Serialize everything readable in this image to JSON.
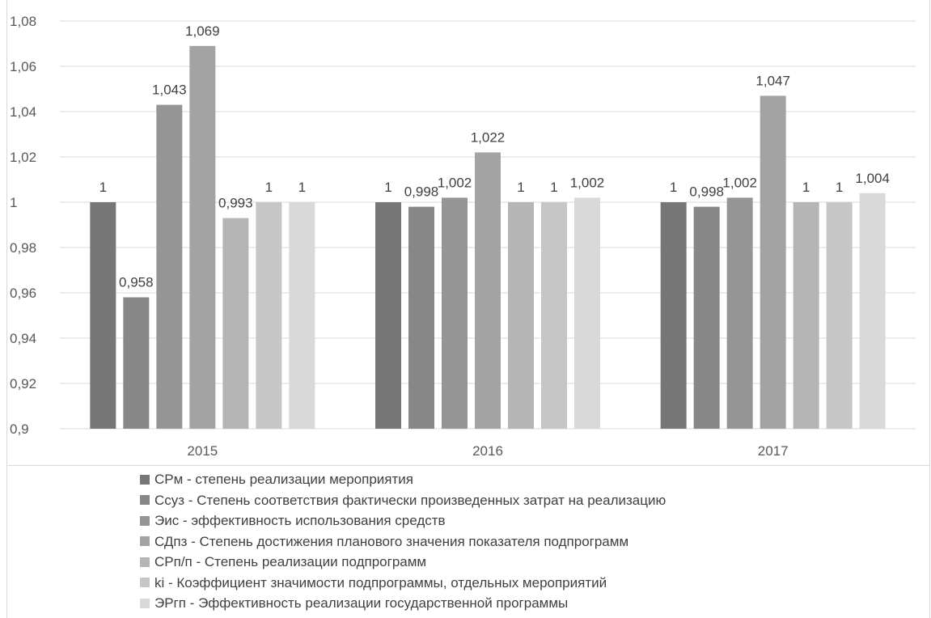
{
  "chart_data": {
    "type": "bar",
    "title": "",
    "xlabel": "",
    "ylabel": "",
    "categories": [
      "2015",
      "2016",
      "2017"
    ],
    "ylim": [
      0.9,
      1.08
    ],
    "yticks": [
      0.9,
      0.92,
      0.94,
      0.96,
      0.98,
      1,
      1.02,
      1.04,
      1.06,
      1.08
    ],
    "ytick_labels": [
      "0,9",
      "0,92",
      "0,94",
      "0,96",
      "0,98",
      "1",
      "1,02",
      "1,04",
      "1,06",
      "1,08"
    ],
    "grid": true,
    "legend_position": "bottom",
    "series": [
      {
        "name": "СРм - степень реализации мероприятия",
        "color": "#767676",
        "values": [
          1,
          1,
          1
        ],
        "labels": [
          "1",
          "1",
          "1"
        ]
      },
      {
        "name": "Ссуз - Степень соответствия фактически произведенных затрат на реализацию",
        "color": "#878787",
        "values": [
          0.958,
          0.998,
          0.998
        ],
        "labels": [
          "0,958",
          "0,998",
          "0,998"
        ]
      },
      {
        "name": "Эис - эффективность использования средств",
        "color": "#959595",
        "values": [
          1.043,
          1.002,
          1.002
        ],
        "labels": [
          "1,043",
          "1,002",
          "1,002"
        ]
      },
      {
        "name": "СДпз - Степень достижения планового значения показателя  подпрограмм",
        "color": "#a3a3a3",
        "values": [
          1.069,
          1.022,
          1.047
        ],
        "labels": [
          "1,069",
          "1,022",
          "1,047"
        ]
      },
      {
        "name": "СРп/п - Степень реализации подпрограмм",
        "color": "#b5b5b5",
        "values": [
          0.993,
          1,
          1
        ],
        "labels": [
          "0,993",
          "1",
          "1"
        ]
      },
      {
        "name": "ki - Коэффициент значимости подпрограммы,  отдельных мероприятий",
        "color": "#c6c6c6",
        "values": [
          1,
          1,
          1
        ],
        "labels": [
          "1",
          "1",
          "1"
        ]
      },
      {
        "name": "ЭРгп - Эффективность реализации государственной программы",
        "color": "#d9d9d9",
        "values": [
          1,
          1.002,
          1.004
        ],
        "labels": [
          "1",
          "1,002",
          "1,004"
        ]
      }
    ]
  }
}
